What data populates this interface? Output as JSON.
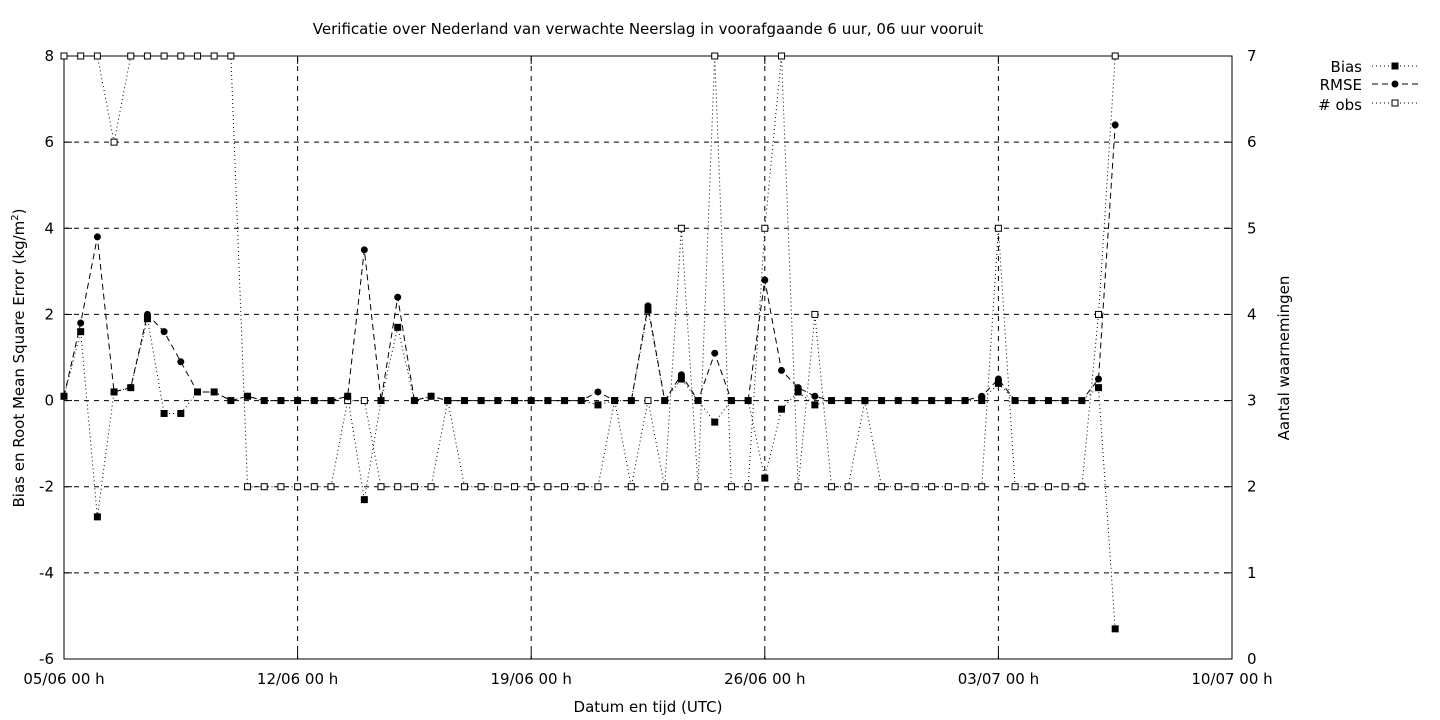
{
  "chart_data": {
    "type": "line",
    "title": "Verificatie over Nederland van verwachte Neerslag in voorafgaande 6 uur, 06 uur vooruit",
    "xlabel": "Datum en tijd (UTC)",
    "ylabel": "Bias en Root Mean Square Error (kg/m²)",
    "ylabel_main": "Bias en Root Mean Square Error (kg/m",
    "ylabel_sup": "2",
    "ylabel_end": ")",
    "y2label": "Aantal waarnemingen",
    "x_ticks": [
      "05/06 00 h",
      "12/06 00 h",
      "19/06 00 h",
      "26/06 00 h",
      "03/07 00 h",
      "10/07 00 h"
    ],
    "y_ticks": [
      "-6",
      "-4",
      "-2",
      "0",
      "2",
      "4",
      "6",
      "8"
    ],
    "y2_ticks": [
      "0",
      "1",
      "2",
      "3",
      "4",
      "5",
      "6",
      "7"
    ],
    "xlim_days": [
      0,
      35
    ],
    "ylim": [
      -6,
      8
    ],
    "y2lim": [
      0,
      7
    ],
    "grid": true,
    "legend_position": "top-right outside",
    "series": [
      {
        "name": "Bias",
        "axis": "left",
        "line": "dotted",
        "marker": "filled-square",
        "points": [
          [
            0.0,
            0.1
          ],
          [
            0.5,
            1.6
          ],
          [
            1.0,
            -2.7
          ],
          [
            1.5,
            0.2
          ],
          [
            2.0,
            0.3
          ],
          [
            2.5,
            1.9
          ],
          [
            3.0,
            -0.3
          ],
          [
            3.5,
            -0.3
          ],
          [
            4.0,
            0.2
          ],
          [
            4.5,
            0.2
          ],
          [
            5.0,
            0.0
          ],
          [
            5.5,
            0.1
          ],
          [
            6.0,
            0.0
          ],
          [
            6.5,
            0.0
          ],
          [
            7.0,
            0.0
          ],
          [
            7.5,
            0.0
          ],
          [
            8.0,
            0.0
          ],
          [
            8.5,
            0.1
          ],
          [
            9.0,
            -2.3
          ],
          [
            9.5,
            0.0
          ],
          [
            10.0,
            1.7
          ],
          [
            10.5,
            0.0
          ],
          [
            11.0,
            0.1
          ],
          [
            11.5,
            0.0
          ],
          [
            12.0,
            0.0
          ],
          [
            12.5,
            0.0
          ],
          [
            13.0,
            0.0
          ],
          [
            13.5,
            0.0
          ],
          [
            14.0,
            0.0
          ],
          [
            14.5,
            0.0
          ],
          [
            15.0,
            0.0
          ],
          [
            15.5,
            0.0
          ],
          [
            16.0,
            -0.1
          ],
          [
            16.5,
            0.0
          ],
          [
            17.0,
            0.0
          ],
          [
            17.5,
            2.1
          ],
          [
            18.0,
            0.0
          ],
          [
            18.5,
            0.5
          ],
          [
            19.0,
            0.0
          ],
          [
            19.5,
            -0.5
          ],
          [
            20.0,
            0.0
          ],
          [
            20.5,
            0.0
          ],
          [
            21.0,
            -1.8
          ],
          [
            21.5,
            -0.2
          ],
          [
            22.0,
            0.2
          ],
          [
            22.5,
            -0.1
          ],
          [
            23.0,
            0.0
          ],
          [
            23.5,
            0.0
          ],
          [
            24.0,
            0.0
          ],
          [
            24.5,
            0.0
          ],
          [
            25.0,
            0.0
          ],
          [
            25.5,
            0.0
          ],
          [
            26.0,
            0.0
          ],
          [
            26.5,
            0.0
          ],
          [
            27.0,
            0.0
          ],
          [
            27.5,
            0.0
          ],
          [
            28.0,
            0.4
          ],
          [
            28.5,
            0.0
          ],
          [
            29.0,
            0.0
          ],
          [
            29.5,
            0.0
          ],
          [
            30.0,
            0.0
          ],
          [
            30.5,
            0.0
          ],
          [
            31.0,
            0.3
          ],
          [
            31.5,
            -5.3
          ]
        ]
      },
      {
        "name": "RMSE",
        "axis": "left",
        "line": "dashed",
        "marker": "filled-circle",
        "points": [
          [
            0.0,
            0.1
          ],
          [
            0.5,
            1.8
          ],
          [
            1.0,
            3.8
          ],
          [
            1.5,
            0.2
          ],
          [
            2.0,
            0.3
          ],
          [
            2.5,
            2.0
          ],
          [
            3.0,
            1.6
          ],
          [
            3.5,
            0.9
          ],
          [
            4.0,
            0.2
          ],
          [
            4.5,
            0.2
          ],
          [
            5.0,
            0.0
          ],
          [
            5.5,
            0.1
          ],
          [
            6.0,
            0.0
          ],
          [
            6.5,
            0.0
          ],
          [
            7.0,
            0.0
          ],
          [
            7.5,
            0.0
          ],
          [
            8.0,
            0.0
          ],
          [
            8.5,
            0.1
          ],
          [
            9.0,
            3.5
          ],
          [
            9.5,
            0.0
          ],
          [
            10.0,
            2.4
          ],
          [
            10.5,
            0.0
          ],
          [
            11.0,
            0.1
          ],
          [
            11.5,
            0.0
          ],
          [
            12.0,
            0.0
          ],
          [
            12.5,
            0.0
          ],
          [
            13.0,
            0.0
          ],
          [
            13.5,
            0.0
          ],
          [
            14.0,
            0.0
          ],
          [
            14.5,
            0.0
          ],
          [
            15.0,
            0.0
          ],
          [
            15.5,
            0.0
          ],
          [
            16.0,
            0.2
          ],
          [
            16.5,
            0.0
          ],
          [
            17.0,
            0.0
          ],
          [
            17.5,
            2.2
          ],
          [
            18.0,
            0.0
          ],
          [
            18.5,
            0.6
          ],
          [
            19.0,
            0.0
          ],
          [
            19.5,
            1.1
          ],
          [
            20.0,
            0.0
          ],
          [
            20.5,
            0.0
          ],
          [
            21.0,
            2.8
          ],
          [
            21.5,
            0.7
          ],
          [
            22.0,
            0.3
          ],
          [
            22.5,
            0.1
          ],
          [
            23.0,
            0.0
          ],
          [
            23.5,
            0.0
          ],
          [
            24.0,
            0.0
          ],
          [
            24.5,
            0.0
          ],
          [
            25.0,
            0.0
          ],
          [
            25.5,
            0.0
          ],
          [
            26.0,
            0.0
          ],
          [
            26.5,
            0.0
          ],
          [
            27.0,
            0.0
          ],
          [
            27.5,
            0.1
          ],
          [
            28.0,
            0.5
          ],
          [
            28.5,
            0.0
          ],
          [
            29.0,
            0.0
          ],
          [
            29.5,
            0.0
          ],
          [
            30.0,
            0.0
          ],
          [
            30.5,
            0.0
          ],
          [
            31.0,
            0.5
          ],
          [
            31.5,
            6.4
          ]
        ]
      },
      {
        "name": "# obs",
        "axis": "right",
        "line": "dotted",
        "marker": "open-square",
        "points": [
          [
            0.0,
            7
          ],
          [
            0.5,
            7
          ],
          [
            1.0,
            7
          ],
          [
            1.5,
            6
          ],
          [
            2.0,
            7
          ],
          [
            2.5,
            7
          ],
          [
            3.0,
            7
          ],
          [
            3.5,
            7
          ],
          [
            4.0,
            7
          ],
          [
            4.5,
            7
          ],
          [
            5.0,
            7
          ],
          [
            5.5,
            2
          ],
          [
            6.0,
            2
          ],
          [
            6.5,
            2
          ],
          [
            7.0,
            2
          ],
          [
            7.5,
            2
          ],
          [
            8.0,
            2
          ],
          [
            8.5,
            3
          ],
          [
            9.0,
            3
          ],
          [
            9.5,
            2
          ],
          [
            10.0,
            2
          ],
          [
            10.5,
            2
          ],
          [
            11.0,
            2
          ],
          [
            11.5,
            3
          ],
          [
            12.0,
            2
          ],
          [
            12.5,
            2
          ],
          [
            13.0,
            2
          ],
          [
            13.5,
            2
          ],
          [
            14.0,
            2
          ],
          [
            14.5,
            2
          ],
          [
            15.0,
            2
          ],
          [
            15.5,
            2
          ],
          [
            16.0,
            2
          ],
          [
            16.5,
            3
          ],
          [
            17.0,
            2
          ],
          [
            17.5,
            3
          ],
          [
            18.0,
            2
          ],
          [
            18.5,
            5
          ],
          [
            19.0,
            2
          ],
          [
            19.5,
            7
          ],
          [
            20.0,
            2
          ],
          [
            20.5,
            2
          ],
          [
            21.0,
            5
          ],
          [
            21.5,
            7
          ],
          [
            22.0,
            2
          ],
          [
            22.5,
            4
          ],
          [
            23.0,
            2
          ],
          [
            23.5,
            2
          ],
          [
            24.0,
            3
          ],
          [
            24.5,
            2
          ],
          [
            25.0,
            2
          ],
          [
            25.5,
            2
          ],
          [
            26.0,
            2
          ],
          [
            26.5,
            2
          ],
          [
            27.0,
            2
          ],
          [
            27.5,
            2
          ],
          [
            28.0,
            5
          ],
          [
            28.5,
            2
          ],
          [
            29.0,
            2
          ],
          [
            29.5,
            2
          ],
          [
            30.0,
            2
          ],
          [
            30.5,
            2
          ],
          [
            31.0,
            4
          ],
          [
            31.5,
            7
          ]
        ]
      }
    ]
  }
}
